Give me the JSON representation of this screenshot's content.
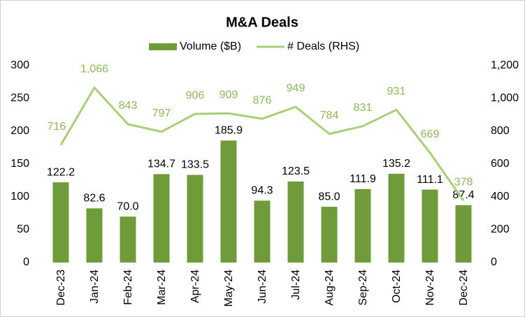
{
  "chart_data": {
    "type": "bar",
    "title": "M&A Deals",
    "categories": [
      "Dec-23",
      "Jan-24",
      "Feb-24",
      "Mar-24",
      "Apr-24",
      "May-24",
      "Jun-24",
      "Jul-24",
      "Aug-24",
      "Sep-24",
      "Oct-24",
      "Nov-24",
      "Dec-24"
    ],
    "series": [
      {
        "name": "Volume ($B)",
        "type": "bar",
        "color": "#709b3b",
        "values": [
          122.2,
          82.6,
          70.0,
          134.7,
          133.5,
          185.9,
          94.3,
          123.5,
          85.0,
          111.9,
          135.2,
          111.1,
          87.4
        ],
        "value_labels": [
          "122.2",
          "82.6",
          "70.0",
          "134.7",
          "133.5",
          "185.9",
          "94.3",
          "123.5",
          "85.0",
          "111.9",
          "135.2",
          "111.1",
          "87.4"
        ]
      },
      {
        "name": "# Deals (RHS)",
        "type": "line",
        "axis": "y2",
        "color": "#a8cf78",
        "values": [
          716,
          1066,
          843,
          797,
          906,
          909,
          876,
          949,
          784,
          831,
          931,
          669,
          378
        ],
        "value_labels": [
          "716",
          "1,066",
          "843",
          "797",
          "906",
          "909",
          "876",
          "949",
          "784",
          "831",
          "931",
          "669",
          "378"
        ]
      }
    ],
    "ylim": [
      0,
      300
    ],
    "yticks": [
      0,
      50,
      100,
      150,
      200,
      250,
      300
    ],
    "y2lim": [
      0,
      1200
    ],
    "y2ticks": [
      0,
      200,
      400,
      600,
      800,
      {
        "value": 1000,
        "label": "1,000"
      },
      {
        "value": 1200,
        "label": "1,200"
      }
    ]
  }
}
